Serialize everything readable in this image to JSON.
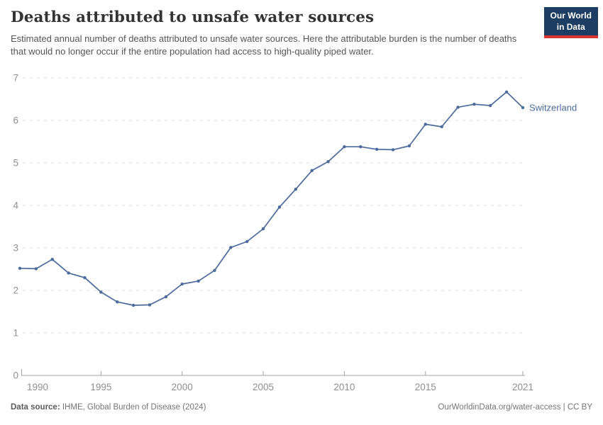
{
  "header": {
    "title": "Deaths attributed to unsafe water sources",
    "subtitle": "Estimated annual number of deaths attributed to unsafe water sources. Here the attributable burden is the number of deaths that would no longer occur if the entire population had access to high-quality piped water.",
    "logo": {
      "line1": "Our World",
      "line2": "in Data",
      "bg_color": "#1d3d63",
      "accent_color": "#d8352e"
    }
  },
  "chart_data": {
    "type": "line",
    "x": [
      1990,
      1991,
      1992,
      1993,
      1994,
      1995,
      1996,
      1997,
      1998,
      1999,
      2000,
      2001,
      2002,
      2003,
      2004,
      2005,
      2006,
      2007,
      2008,
      2009,
      2010,
      2011,
      2012,
      2013,
      2014,
      2015,
      2016,
      2017,
      2018,
      2019,
      2020,
      2021
    ],
    "series": [
      {
        "name": "Switzerland",
        "color": "#4C6A9C",
        "values": [
          2.52,
          2.51,
          2.73,
          2.41,
          2.3,
          1.96,
          1.73,
          1.65,
          1.66,
          1.85,
          2.15,
          2.22,
          2.47,
          3.01,
          3.15,
          3.45,
          3.96,
          4.38,
          4.82,
          5.03,
          5.38,
          5.38,
          5.32,
          5.31,
          5.4,
          5.91,
          5.85,
          6.31,
          6.38,
          6.35,
          6.67,
          6.3
        ]
      }
    ],
    "title": "Deaths attributed to unsafe water sources",
    "xlabel": "",
    "ylabel": "",
    "xlim": [
      1990,
      2021
    ],
    "ylim": [
      0,
      7
    ],
    "x_tick_labels": [
      "1990",
      "1995",
      "2000",
      "2005",
      "2010",
      "2015",
      "2021"
    ],
    "y_tick_labels": [
      "0",
      "1",
      "2",
      "3",
      "4",
      "5",
      "6",
      "7"
    ],
    "grid": "horizontal-dashed",
    "legend_position": "end-of-line-label",
    "colors": {
      "grid": "#dcdcdc",
      "axis": "#a3a3a3",
      "tick_label": "#8f8f8f"
    }
  },
  "footer": {
    "source_label": "Data source:",
    "source_text": " IHME, Global Burden of Disease (2024)",
    "credit": "OurWorldinData.org/water-access | CC BY"
  }
}
